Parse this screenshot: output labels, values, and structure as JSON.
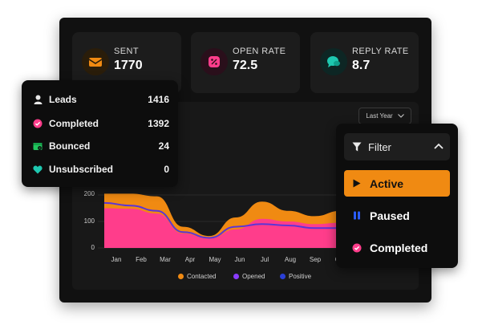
{
  "stats": [
    {
      "label": "SENT",
      "value": "1770",
      "icon": "envelope-icon",
      "color": "#f08a12"
    },
    {
      "label": "OPEN RATE",
      "value": "72.5",
      "icon": "percent-icon",
      "color": "#ff3d8b"
    },
    {
      "label": "REPLY RATE",
      "value": "8.7",
      "icon": "chat-bubble-icon",
      "color": "#1ec8b0"
    }
  ],
  "period_select": {
    "value": "Last Year"
  },
  "summary": [
    {
      "label": "Leads",
      "value": "1416",
      "icon": "user-icon"
    },
    {
      "label": "Completed",
      "value": "1392",
      "icon": "check-circle-icon"
    },
    {
      "label": "Bounced",
      "value": "24",
      "icon": "bounced-icon"
    },
    {
      "label": "Unsubscribed",
      "value": "0",
      "icon": "heart-icon"
    }
  ],
  "filter": {
    "title": "Filter",
    "options": [
      {
        "label": "Active",
        "icon": "play-icon",
        "selected": true
      },
      {
        "label": "Paused",
        "icon": "pause-icon",
        "selected": false
      },
      {
        "label": "Completed",
        "icon": "check-circle-icon",
        "selected": false
      }
    ]
  },
  "colors": {
    "contacted": "#f08a12",
    "opened": "#ff3d8b",
    "positive": "#2a3fd6"
  },
  "chart_data": {
    "type": "area",
    "x": [
      "Jan",
      "Feb",
      "Mar",
      "Apr",
      "May",
      "Jun",
      "Jul",
      "Aug",
      "Sep",
      "Oct"
    ],
    "y_ticks": [
      "0",
      "100",
      "200"
    ],
    "ylim": [
      0,
      300
    ],
    "series": [
      {
        "name": "Contacted",
        "values": [
          205,
          205,
          195,
          80,
          45,
          115,
          175,
          140,
          120,
          140
        ]
      },
      {
        "name": "Opened",
        "values": [
          150,
          148,
          130,
          55,
          35,
          70,
          110,
          100,
          90,
          95
        ]
      },
      {
        "name": "Positive",
        "values": [
          170,
          160,
          140,
          60,
          38,
          80,
          90,
          85,
          75,
          75
        ]
      }
    ]
  }
}
